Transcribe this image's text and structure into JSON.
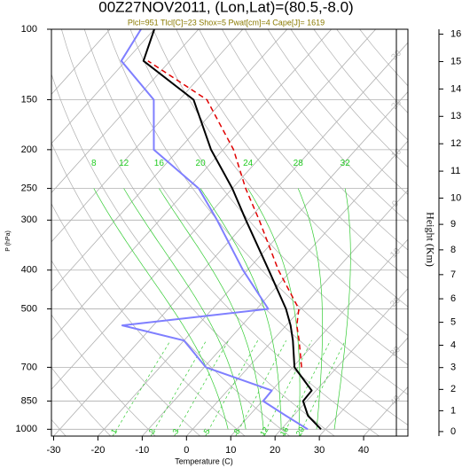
{
  "chart_data": {
    "type": "skewt",
    "title": "00Z27NOV2011, (Lon,Lat)=(80.5,-8.0)",
    "subtitle": "Plcl=951 Tlcl[C]=23 Shox=5 Pwat[cm]=4 Cape[J]= 1619",
    "x_label": "Temperature (C)",
    "y_label": "P (hPa)",
    "y2_label": "Height (Km)",
    "xlim": [
      -30.5,
      50
    ],
    "xticks": [
      -30,
      -20,
      -10,
      0,
      10,
      20,
      30,
      40
    ],
    "ylim": [
      1040,
      100
    ],
    "log_y": true,
    "yticks": [
      1000,
      850,
      700,
      500,
      400,
      300,
      250,
      200,
      150,
      100
    ],
    "y2ticks": [
      0,
      1,
      2,
      3,
      4,
      5,
      6,
      7,
      8,
      9,
      10,
      11,
      12,
      13,
      14,
      15,
      16
    ],
    "isotherms": [
      -100,
      -90,
      -80,
      -70,
      -60,
      -50,
      -40,
      -30,
      -20,
      -10,
      0,
      10,
      20,
      30,
      40
    ],
    "dry_adiabats": [
      -30,
      -20,
      -10,
      0,
      10,
      20,
      30,
      40,
      50,
      60,
      70,
      80,
      90,
      100,
      110,
      120,
      130,
      140,
      150,
      160,
      170
    ],
    "moist_adiabats": [
      8,
      12,
      16,
      20,
      24,
      28,
      32
    ],
    "mixing_ratios": [
      1,
      2,
      3,
      5,
      8,
      12,
      16,
      20
    ],
    "pressure": [
      1000,
      925,
      850,
      800,
      700,
      600,
      550,
      500,
      400,
      300,
      250,
      200,
      150,
      120,
      100
    ],
    "series": [
      {
        "color": "#000000",
        "dash": false,
        "values": [
          29,
          23.3,
          19.2,
          19,
          10.4,
          4.6,
          1.0,
          -3.4,
          -15.2,
          -30.5,
          -40,
          -52.7,
          -66.8,
          -86,
          -90
        ]
      },
      {
        "color": "#7f7fff",
        "dash": false,
        "values": [
          26,
          18.3,
          10.2,
          10,
          -9.6,
          -20,
          -37,
          -7.4,
          -21,
          -37,
          -47.6,
          -65.6,
          -75.8,
          -91,
          -93
        ]
      },
      {
        "color": "#e00000",
        "dash": true,
        "values": [
          null,
          null,
          null,
          null,
          12,
          6,
          2.4,
          -0.5,
          -13,
          -27.5,
          -37,
          -47.6,
          -63.8,
          -85,
          null
        ]
      }
    ]
  }
}
